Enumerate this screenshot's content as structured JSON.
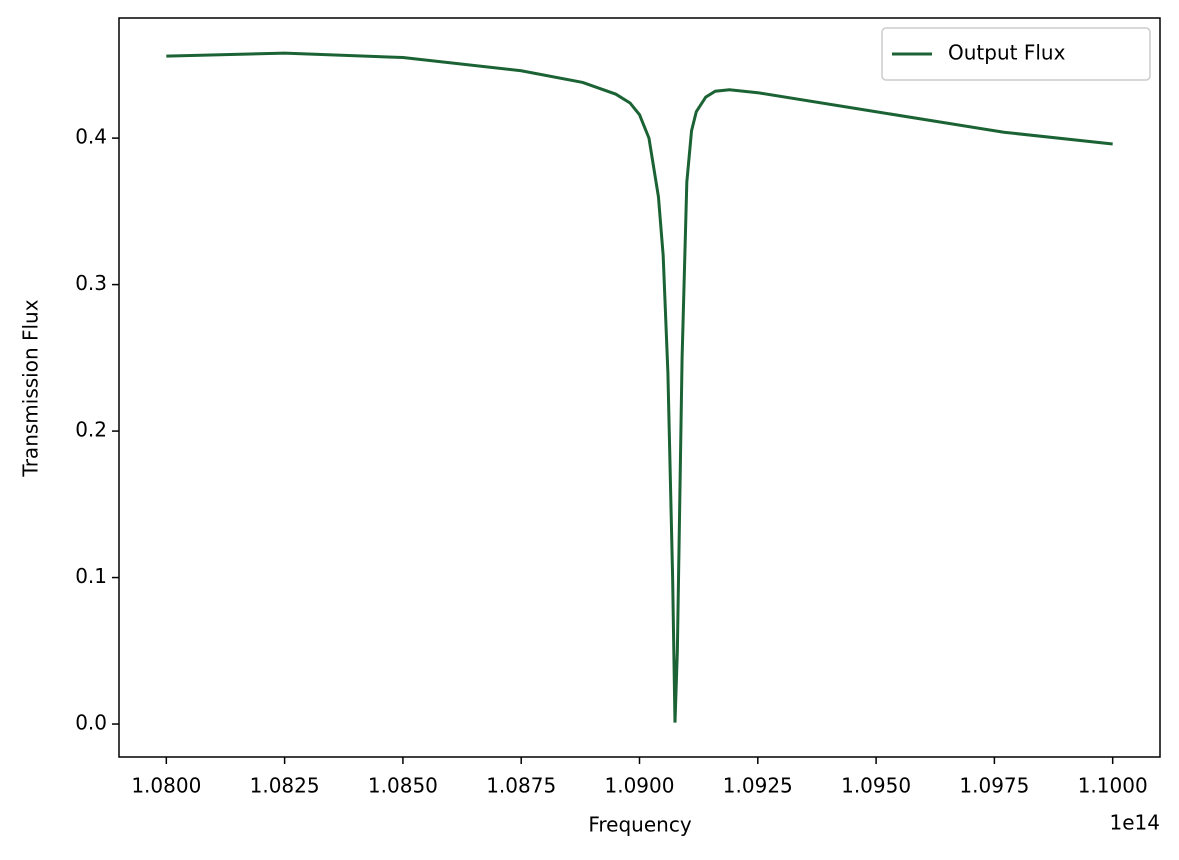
{
  "chart_data": {
    "type": "line",
    "x_label": "Frequency",
    "y_label": "Transmission Flux",
    "x_offset_label": "1e14",
    "x": [
      1.08,
      1.0825,
      1.085,
      1.0875,
      1.0888,
      1.0895,
      1.0898,
      1.09,
      1.0902,
      1.0904,
      1.0905,
      1.0906,
      1.0907,
      1.09075,
      1.0908,
      1.0909,
      1.091,
      1.0911,
      1.0912,
      1.0914,
      1.0916,
      1.0919,
      1.0925,
      1.095,
      1.0977,
      1.1
    ],
    "series": [
      {
        "name": "Output Flux",
        "color": "#1b6334",
        "values": [
          0.456,
          0.458,
          0.455,
          0.446,
          0.438,
          0.43,
          0.424,
          0.416,
          0.4,
          0.36,
          0.32,
          0.24,
          0.1,
          0.001,
          0.05,
          0.25,
          0.37,
          0.405,
          0.418,
          0.428,
          0.432,
          0.433,
          0.431,
          0.418,
          0.404,
          0.396
        ]
      }
    ],
    "xlim": [
      1.079,
      1.101
    ],
    "xticks": [
      {
        "value": 1.08,
        "label": "1.0800"
      },
      {
        "value": 1.0825,
        "label": "1.0825"
      },
      {
        "value": 1.085,
        "label": "1.0850"
      },
      {
        "value": 1.0875,
        "label": "1.0875"
      },
      {
        "value": 1.09,
        "label": "1.0900"
      },
      {
        "value": 1.0925,
        "label": "1.0925"
      },
      {
        "value": 1.095,
        "label": "1.0950"
      },
      {
        "value": 1.0975,
        "label": "1.0975"
      },
      {
        "value": 1.1,
        "label": "1.1000"
      }
    ],
    "ylim": [
      -0.0225,
      0.482
    ],
    "yticks": [
      {
        "value": 0,
        "label": "0.0"
      },
      0.1,
      0.2,
      0.3,
      0.4
    ],
    "grid": false,
    "legend": "upper-right"
  }
}
